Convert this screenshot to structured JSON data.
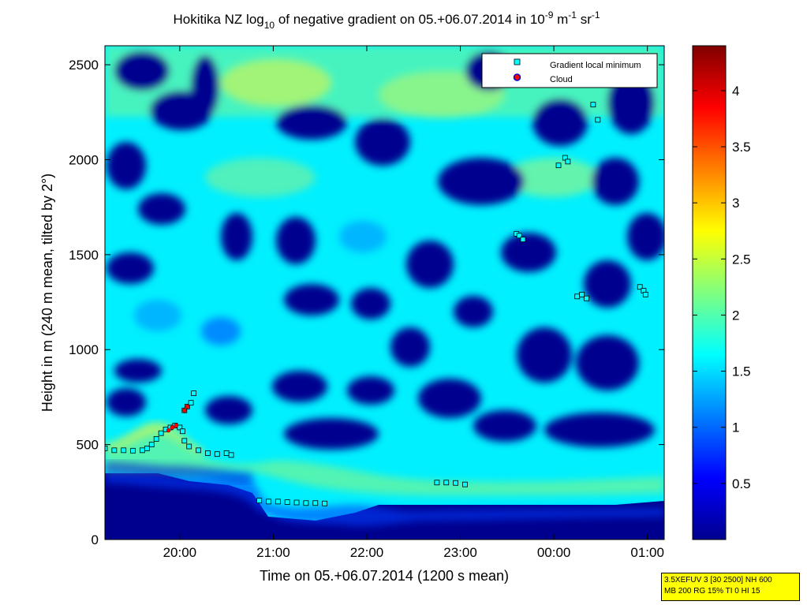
{
  "title_parts": {
    "prefix": "Hokitika NZ log",
    "sub": "10",
    "middle": " of negative gradient on 05.+06.07.2014 in 10",
    "sup1": "-9",
    "unit_m": " m",
    "sup2": "-1",
    "unit_sr": " sr",
    "sup3": "-1"
  },
  "chart_data": {
    "type": "heatmap",
    "xlabel": "Time on 05.+06.07.2014 (1200 s mean)",
    "ylabel": "Height in m (240 m mean, tilted by 2°)",
    "x_ticks": [
      "20:00",
      "21:00",
      "22:00",
      "23:00",
      "00:00",
      "01:00"
    ],
    "x_tick_values_h": [
      20,
      21,
      22,
      23,
      24,
      25
    ],
    "xlim_h": [
      19.2,
      25.18
    ],
    "y_ticks": [
      0,
      500,
      1000,
      1500,
      2000,
      2500
    ],
    "ylim": [
      0,
      2600
    ],
    "colorbar": {
      "ticks": [
        0.5,
        1,
        1.5,
        2,
        2.5,
        3,
        3.5,
        4
      ],
      "tick_labels": [
        "0.5",
        "1",
        "1.5",
        "2",
        "2.5",
        "3",
        "3.5",
        "4"
      ],
      "range": [
        0,
        4.4
      ],
      "colormap": "jet"
    },
    "legend": {
      "position": "top-right",
      "entries": [
        {
          "label": "Gradient local minimum",
          "color": "#00ffff",
          "marker": "square"
        },
        {
          "label": "Cloud",
          "color": "#ff0000",
          "edge": "#0000cc",
          "marker": "circle"
        }
      ]
    },
    "gradient_minima": [
      {
        "t": 19.2,
        "h": 480
      },
      {
        "t": 19.3,
        "h": 470
      },
      {
        "t": 19.4,
        "h": 470
      },
      {
        "t": 19.5,
        "h": 468
      },
      {
        "t": 19.6,
        "h": 470
      },
      {
        "t": 19.65,
        "h": 480
      },
      {
        "t": 19.7,
        "h": 500
      },
      {
        "t": 19.75,
        "h": 530
      },
      {
        "t": 19.8,
        "h": 560
      },
      {
        "t": 19.85,
        "h": 580
      },
      {
        "t": 19.9,
        "h": 590
      },
      {
        "t": 19.95,
        "h": 600
      },
      {
        "t": 20.0,
        "h": 590
      },
      {
        "t": 20.03,
        "h": 570
      },
      {
        "t": 20.05,
        "h": 520
      },
      {
        "t": 20.1,
        "h": 490
      },
      {
        "t": 20.2,
        "h": 470
      },
      {
        "t": 20.3,
        "h": 455
      },
      {
        "t": 20.4,
        "h": 450
      },
      {
        "t": 20.5,
        "h": 455
      },
      {
        "t": 20.55,
        "h": 445
      },
      {
        "t": 20.05,
        "h": 680
      },
      {
        "t": 20.08,
        "h": 700
      },
      {
        "t": 20.12,
        "h": 720
      },
      {
        "t": 20.15,
        "h": 770
      },
      {
        "t": 20.85,
        "h": 205
      },
      {
        "t": 20.95,
        "h": 200
      },
      {
        "t": 21.05,
        "h": 200
      },
      {
        "t": 21.15,
        "h": 197
      },
      {
        "t": 21.25,
        "h": 195
      },
      {
        "t": 21.35,
        "h": 192
      },
      {
        "t": 21.45,
        "h": 192
      },
      {
        "t": 21.55,
        "h": 190
      },
      {
        "t": 22.75,
        "h": 300
      },
      {
        "t": 22.85,
        "h": 300
      },
      {
        "t": 22.95,
        "h": 298
      },
      {
        "t": 23.05,
        "h": 290
      },
      {
        "t": 23.6,
        "h": 1610
      },
      {
        "t": 23.63,
        "h": 1600
      },
      {
        "t": 23.67,
        "h": 1580
      },
      {
        "t": 24.05,
        "h": 1970
      },
      {
        "t": 24.12,
        "h": 2010
      },
      {
        "t": 24.15,
        "h": 1990
      },
      {
        "t": 24.25,
        "h": 1280
      },
      {
        "t": 24.3,
        "h": 1290
      },
      {
        "t": 24.35,
        "h": 1270
      },
      {
        "t": 24.42,
        "h": 2290
      },
      {
        "t": 24.47,
        "h": 2210
      },
      {
        "t": 24.92,
        "h": 1330
      },
      {
        "t": 24.96,
        "h": 1310
      },
      {
        "t": 24.98,
        "h": 1290
      }
    ],
    "clouds": [
      {
        "t": 20.05,
        "h": 680
      },
      {
        "t": 20.08,
        "h": 700
      },
      {
        "t": 19.88,
        "h": 575
      },
      {
        "t": 19.92,
        "h": 590
      },
      {
        "t": 19.96,
        "h": 600
      }
    ]
  },
  "info_box": {
    "line1": "3.5XEFUV 3 [30 2500] NH 600",
    "line2": "MB 200 RG 15% TI 0 HI 15"
  }
}
